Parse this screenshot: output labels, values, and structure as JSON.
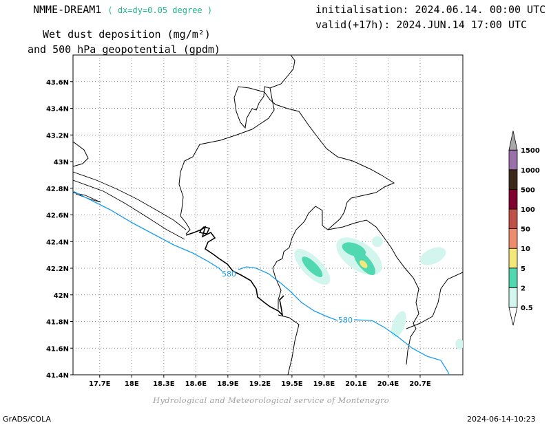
{
  "header": {
    "model": "NMME-DREAM1",
    "resolution": "( dx=dy=0.05 degree )",
    "init": "initialisation: 2024.06.14. 00:00 UTC",
    "valid": "valid(+17h): 2024.JUN.14 17:00 UTC",
    "title_line1": "Wet dust deposition (mg/m²)",
    "title_line2": "and 500 hPa geopotential (gpdm)"
  },
  "map": {
    "lon_range": [
      17.45,
      21.1
    ],
    "lat_range": [
      41.4,
      43.8
    ],
    "lon_ticks": [
      "17.7E",
      "18E",
      "18.3E",
      "18.6E",
      "18.9E",
      "19.2E",
      "19.5E",
      "19.8E",
      "20.1E",
      "20.4E",
      "20.7E"
    ],
    "lon_values": [
      17.7,
      18.0,
      18.3,
      18.6,
      18.9,
      19.2,
      19.5,
      19.8,
      20.1,
      20.4,
      20.7
    ],
    "lat_ticks": [
      "41.4N",
      "41.6N",
      "41.8N",
      "42N",
      "42.2N",
      "42.4N",
      "42.6N",
      "42.8N",
      "43N",
      "43.2N",
      "43.4N",
      "43.6N"
    ],
    "lat_values": [
      41.4,
      41.6,
      41.8,
      42.0,
      42.2,
      42.4,
      42.6,
      42.8,
      43.0,
      43.2,
      43.4,
      43.6
    ],
    "grid": true,
    "contour_label": "580",
    "contour_color": "#1a9cf0",
    "dust_blobs": [
      {
        "lon": 19.69,
        "lat": 42.21,
        "level": "2"
      },
      {
        "lon": 20.17,
        "lat": 42.28,
        "level": "2"
      },
      {
        "lon": 20.17,
        "lat": 42.23,
        "level": "5"
      },
      {
        "lon": 20.82,
        "lat": 42.29,
        "level": "0.5"
      },
      {
        "lon": 20.5,
        "lat": 41.78,
        "level": "0.5"
      }
    ]
  },
  "legend": {
    "levels": [
      "0.5",
      "2",
      "5",
      "10",
      "50",
      "100",
      "500",
      "1000",
      "1500"
    ],
    "colors": [
      "#d2f5ee",
      "#50d8b0",
      "#f4e87a",
      "#f08c6e",
      "#c0504a",
      "#800030",
      "#3c2818",
      "#9a70a8",
      "#a8a8a8"
    ]
  },
  "footer": {
    "credit": "Hydrological and Meteorological service of Montenegro",
    "software": "GrADS/COLA",
    "timestamp": "2024-06-14-10:23"
  }
}
